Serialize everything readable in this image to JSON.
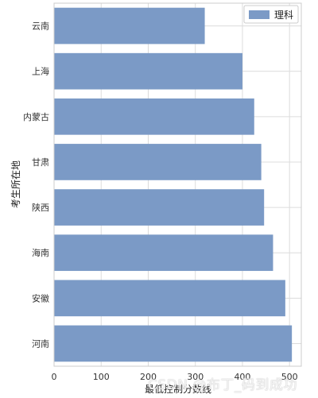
{
  "chart_data": {
    "type": "bar",
    "orientation": "horizontal",
    "categories": [
      "云南",
      "上海",
      "内蒙古",
      "甘肃",
      "陕西",
      "海南",
      "安徽",
      "河南"
    ],
    "series": [
      {
        "name": "理科",
        "values": [
          320,
          400,
          425,
          440,
          446,
          465,
          491,
          505
        ]
      }
    ],
    "xlabel": "最低控制分数线",
    "ylabel": "考生所在地",
    "xlim": [
      0,
      525
    ],
    "xticks": [
      "0",
      "100",
      "200",
      "300",
      "400",
      "500"
    ],
    "grid": true,
    "legend_position": "top-right",
    "bar_color": "#7b9ac6"
  },
  "watermark": "CSDN @布丁_码到成功"
}
